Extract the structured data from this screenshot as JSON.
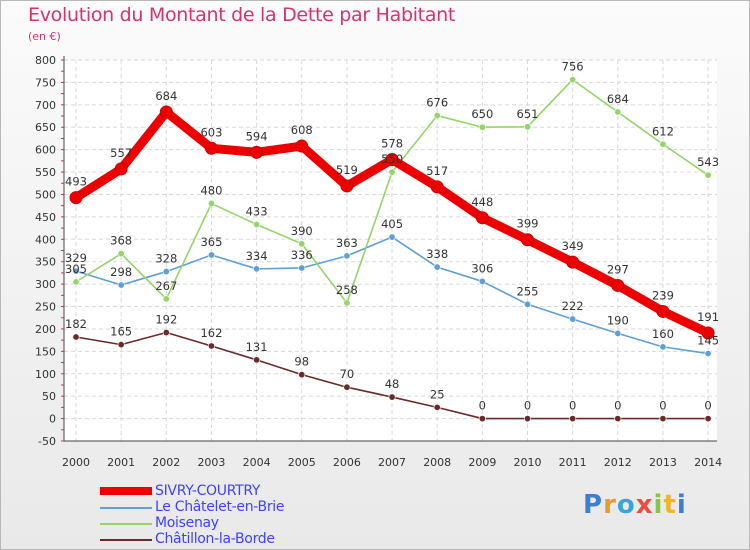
{
  "title": "Evolution du Montant de la Dette par Habitant",
  "subtitle": "(en €)",
  "logo": "Proxiti",
  "chart_data": {
    "type": "line",
    "title": "Evolution du Montant de la Dette par Habitant",
    "ylabel": "(en €)",
    "x": [
      "2000",
      "2001",
      "2002",
      "2003",
      "2004",
      "2005",
      "2006",
      "2007",
      "2008",
      "2009",
      "2010",
      "2011",
      "2012",
      "2013",
      "2014"
    ],
    "ylim": [
      -50,
      800
    ],
    "yticks": [
      -50,
      0,
      50,
      100,
      150,
      200,
      250,
      300,
      350,
      400,
      450,
      500,
      550,
      600,
      650,
      700,
      750,
      800
    ],
    "grid": true,
    "legend": "bottom-left",
    "series": [
      {
        "name": "SIVRY-COURTRY",
        "color": "#ee0000",
        "values": [
          493,
          557,
          684,
          603,
          594,
          608,
          519,
          578,
          517,
          448,
          399,
          349,
          297,
          239,
          191
        ]
      },
      {
        "name": "Le Châtelet-en-Brie",
        "color": "#5f9fd6",
        "values": [
          329,
          298,
          328,
          365,
          334,
          336,
          363,
          405,
          338,
          306,
          255,
          222,
          190,
          160,
          145
        ]
      },
      {
        "name": "Moisenay",
        "color": "#94d46a",
        "values": [
          305,
          368,
          267,
          480,
          433,
          390,
          258,
          550,
          676,
          650,
          651,
          756,
          684,
          612,
          543
        ]
      },
      {
        "name": "Châtillon-la-Borde",
        "color": "#6b2a2a",
        "values": [
          182,
          165,
          192,
          162,
          131,
          98,
          70,
          48,
          25,
          0,
          0,
          0,
          0,
          0,
          0
        ]
      }
    ],
    "labels": [
      [
        "493",
        "557",
        "684",
        "603",
        "594",
        "608",
        "519",
        "578",
        "517",
        "448",
        "399",
        "349",
        "297",
        "239",
        "191"
      ],
      [
        "329",
        "298",
        "328",
        "365",
        "334",
        "336",
        "363",
        "405",
        "338",
        "306",
        "255",
        "222",
        "190",
        "160",
        "145"
      ],
      [
        "305",
        "368",
        "267",
        "480",
        "433",
        "390",
        "258",
        "550",
        "676",
        "650",
        "651",
        "756",
        "684",
        "612",
        "543"
      ],
      [
        "182",
        "165",
        "192",
        "162",
        "131",
        "98",
        "70",
        "48",
        "25",
        "0",
        "0",
        "0",
        "0",
        "0",
        "0"
      ]
    ]
  }
}
